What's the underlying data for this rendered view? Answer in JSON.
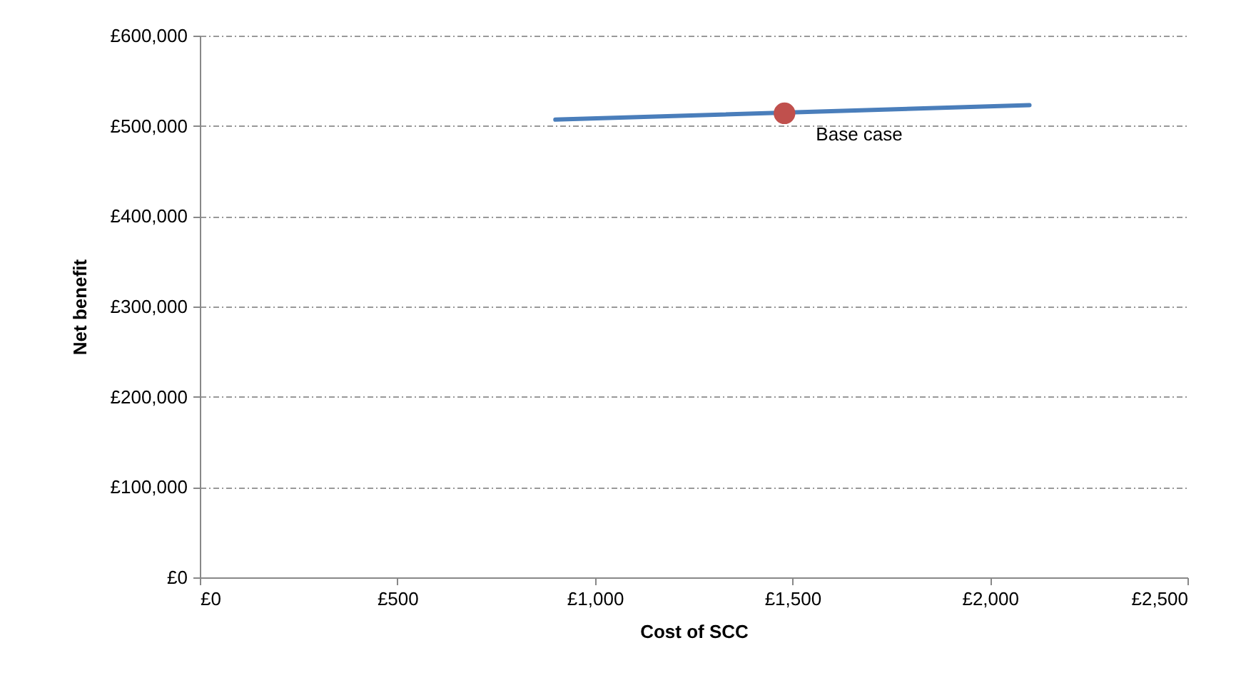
{
  "chart_data": {
    "type": "line",
    "xlabel": "Cost of SCC",
    "ylabel": "Net benefit",
    "xlim": [
      0,
      2500
    ],
    "xticks": [
      {
        "value": 0,
        "label": "£0"
      },
      {
        "value": 500,
        "label": "£500"
      },
      {
        "value": 1000,
        "label": "£1,000"
      },
      {
        "value": 1500,
        "label": "£1,500"
      },
      {
        "value": 2000,
        "label": "£2,000"
      },
      {
        "value": 2500,
        "label": "£2,500"
      }
    ],
    "ylim": [
      0,
      600000
    ],
    "yticks": [
      {
        "value": 0,
        "label": "£0"
      },
      {
        "value": 100000,
        "label": "£100,000"
      },
      {
        "value": 200000,
        "label": "£200,000"
      },
      {
        "value": 300000,
        "label": "£300,000"
      },
      {
        "value": 400000,
        "label": "£400,000"
      },
      {
        "value": 500000,
        "label": "£500,000"
      },
      {
        "value": 600000,
        "label": "£600,000"
      }
    ],
    "grid": "y",
    "legend": false,
    "series": [
      {
        "color": "#4a7ebb",
        "x": [
          900,
          2100
        ],
        "values": [
          507000,
          523000
        ]
      },
      {
        "type": "scatter",
        "color": "#c0504d",
        "x": [
          1480
        ],
        "values": [
          514000
        ]
      }
    ],
    "annotations": [
      {
        "text": "Base case",
        "x": 1480,
        "y": 514000
      }
    ]
  }
}
